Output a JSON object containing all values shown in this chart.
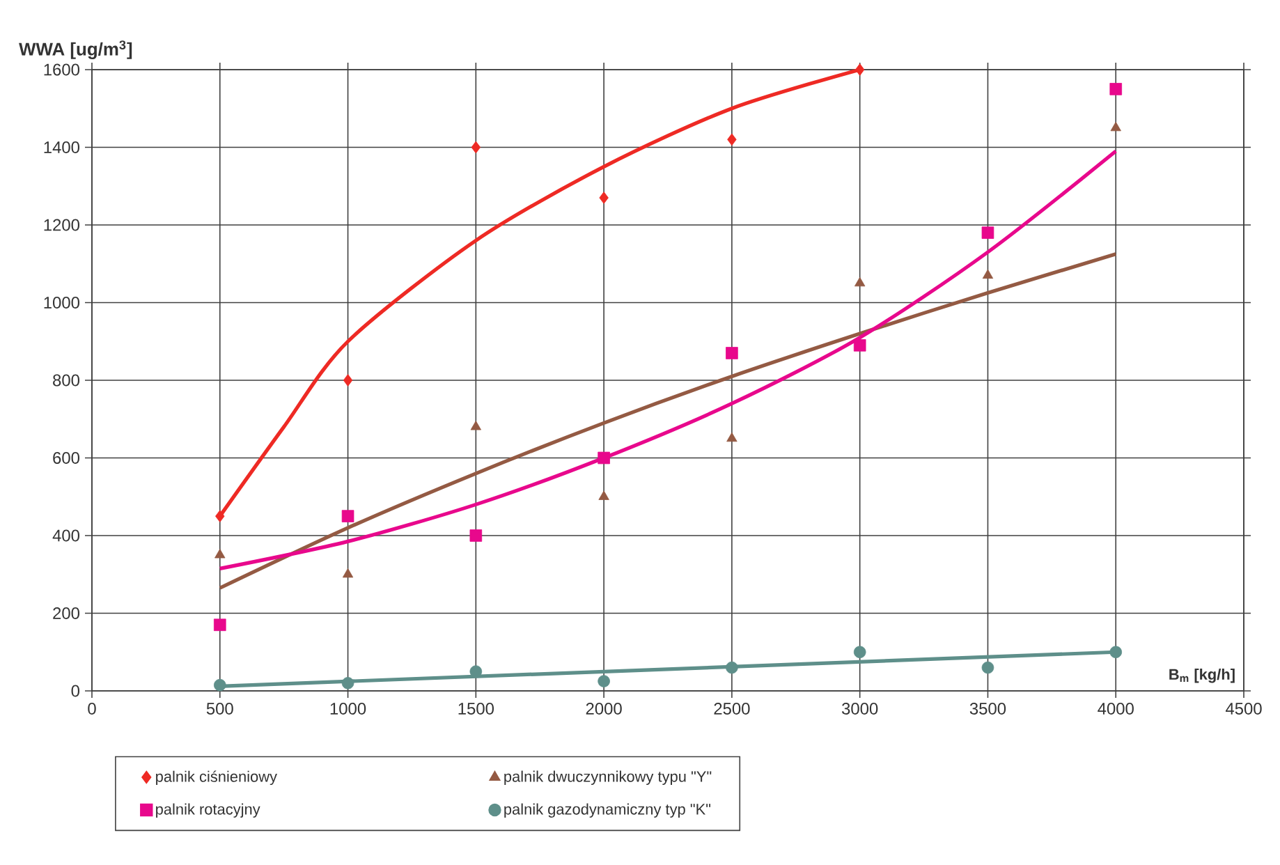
{
  "chart_data": {
    "type": "scatter",
    "ylabel": "WWA [ug/m$^{3}$]",
    "xlabel": "B$_{m}$ [kg/h]",
    "xlim": [
      0,
      4500
    ],
    "xticks": [
      0,
      500,
      1000,
      1500,
      2000,
      2500,
      3000,
      3500,
      4000,
      4500
    ],
    "ylim": [
      0,
      1600
    ],
    "yticks": [
      0,
      200,
      400,
      600,
      800,
      1000,
      1200,
      1400,
      1600
    ],
    "grid": true,
    "legend": "bottom",
    "series": [
      {
        "name": "palnik ciśnieniowy",
        "color": "#ee2a24",
        "marker": "diamond",
        "x": [
          500,
          1000,
          1500,
          2000,
          2500,
          3000
        ],
        "values": [
          450,
          800,
          1400,
          1270,
          1420,
          1600
        ]
      },
      {
        "name": "palnik dwuczynnikowy typu \"Y\"",
        "color": "#945a43",
        "marker": "triangle",
        "x": [
          500,
          1000,
          1500,
          2000,
          2500,
          3000,
          3500,
          4000
        ],
        "values": [
          350,
          300,
          680,
          500,
          650,
          1050,
          1070,
          1450
        ]
      },
      {
        "name": "palnik rotacyjny",
        "color": "#e8088c",
        "marker": "square",
        "x": [
          500,
          1000,
          1500,
          2000,
          2500,
          3000,
          3500,
          4000
        ],
        "values": [
          170,
          450,
          400,
          600,
          870,
          890,
          1180,
          1550
        ]
      },
      {
        "name": "palnik gazodynamiczny typ \"K\"",
        "color": "#5e8f8a",
        "marker": "circle",
        "x": [
          500,
          1000,
          1500,
          2000,
          2500,
          3000,
          3500,
          4000
        ],
        "values": [
          15,
          20,
          50,
          25,
          60,
          100,
          60,
          100
        ]
      },
      {
        "type": "line",
        "color": "#ee2a24",
        "marker": "none",
        "line_style": "solid",
        "x": [
          500,
          750,
          1000,
          1500,
          2000,
          2500,
          3000
        ],
        "values": [
          450,
          680,
          900,
          1160,
          1350,
          1500,
          1600
        ]
      },
      {
        "type": "line",
        "color": "#945a43",
        "marker": "none",
        "line_style": "solid",
        "x": [
          500,
          1000,
          1500,
          2000,
          2500,
          3000,
          3500,
          4000
        ],
        "values": [
          265,
          420,
          560,
          690,
          810,
          920,
          1025,
          1125
        ]
      },
      {
        "type": "line",
        "color": "#e8088c",
        "marker": "none",
        "line_style": "solid",
        "x": [
          500,
          1000,
          1500,
          2000,
          2500,
          3000,
          3500,
          4000
        ],
        "values": [
          315,
          385,
          480,
          600,
          740,
          910,
          1130,
          1390
        ]
      },
      {
        "type": "line",
        "color": "#5e8f8a",
        "marker": "none",
        "line_style": "solid",
        "x": [
          500,
          4000
        ],
        "values": [
          12,
          100
        ]
      }
    ]
  }
}
